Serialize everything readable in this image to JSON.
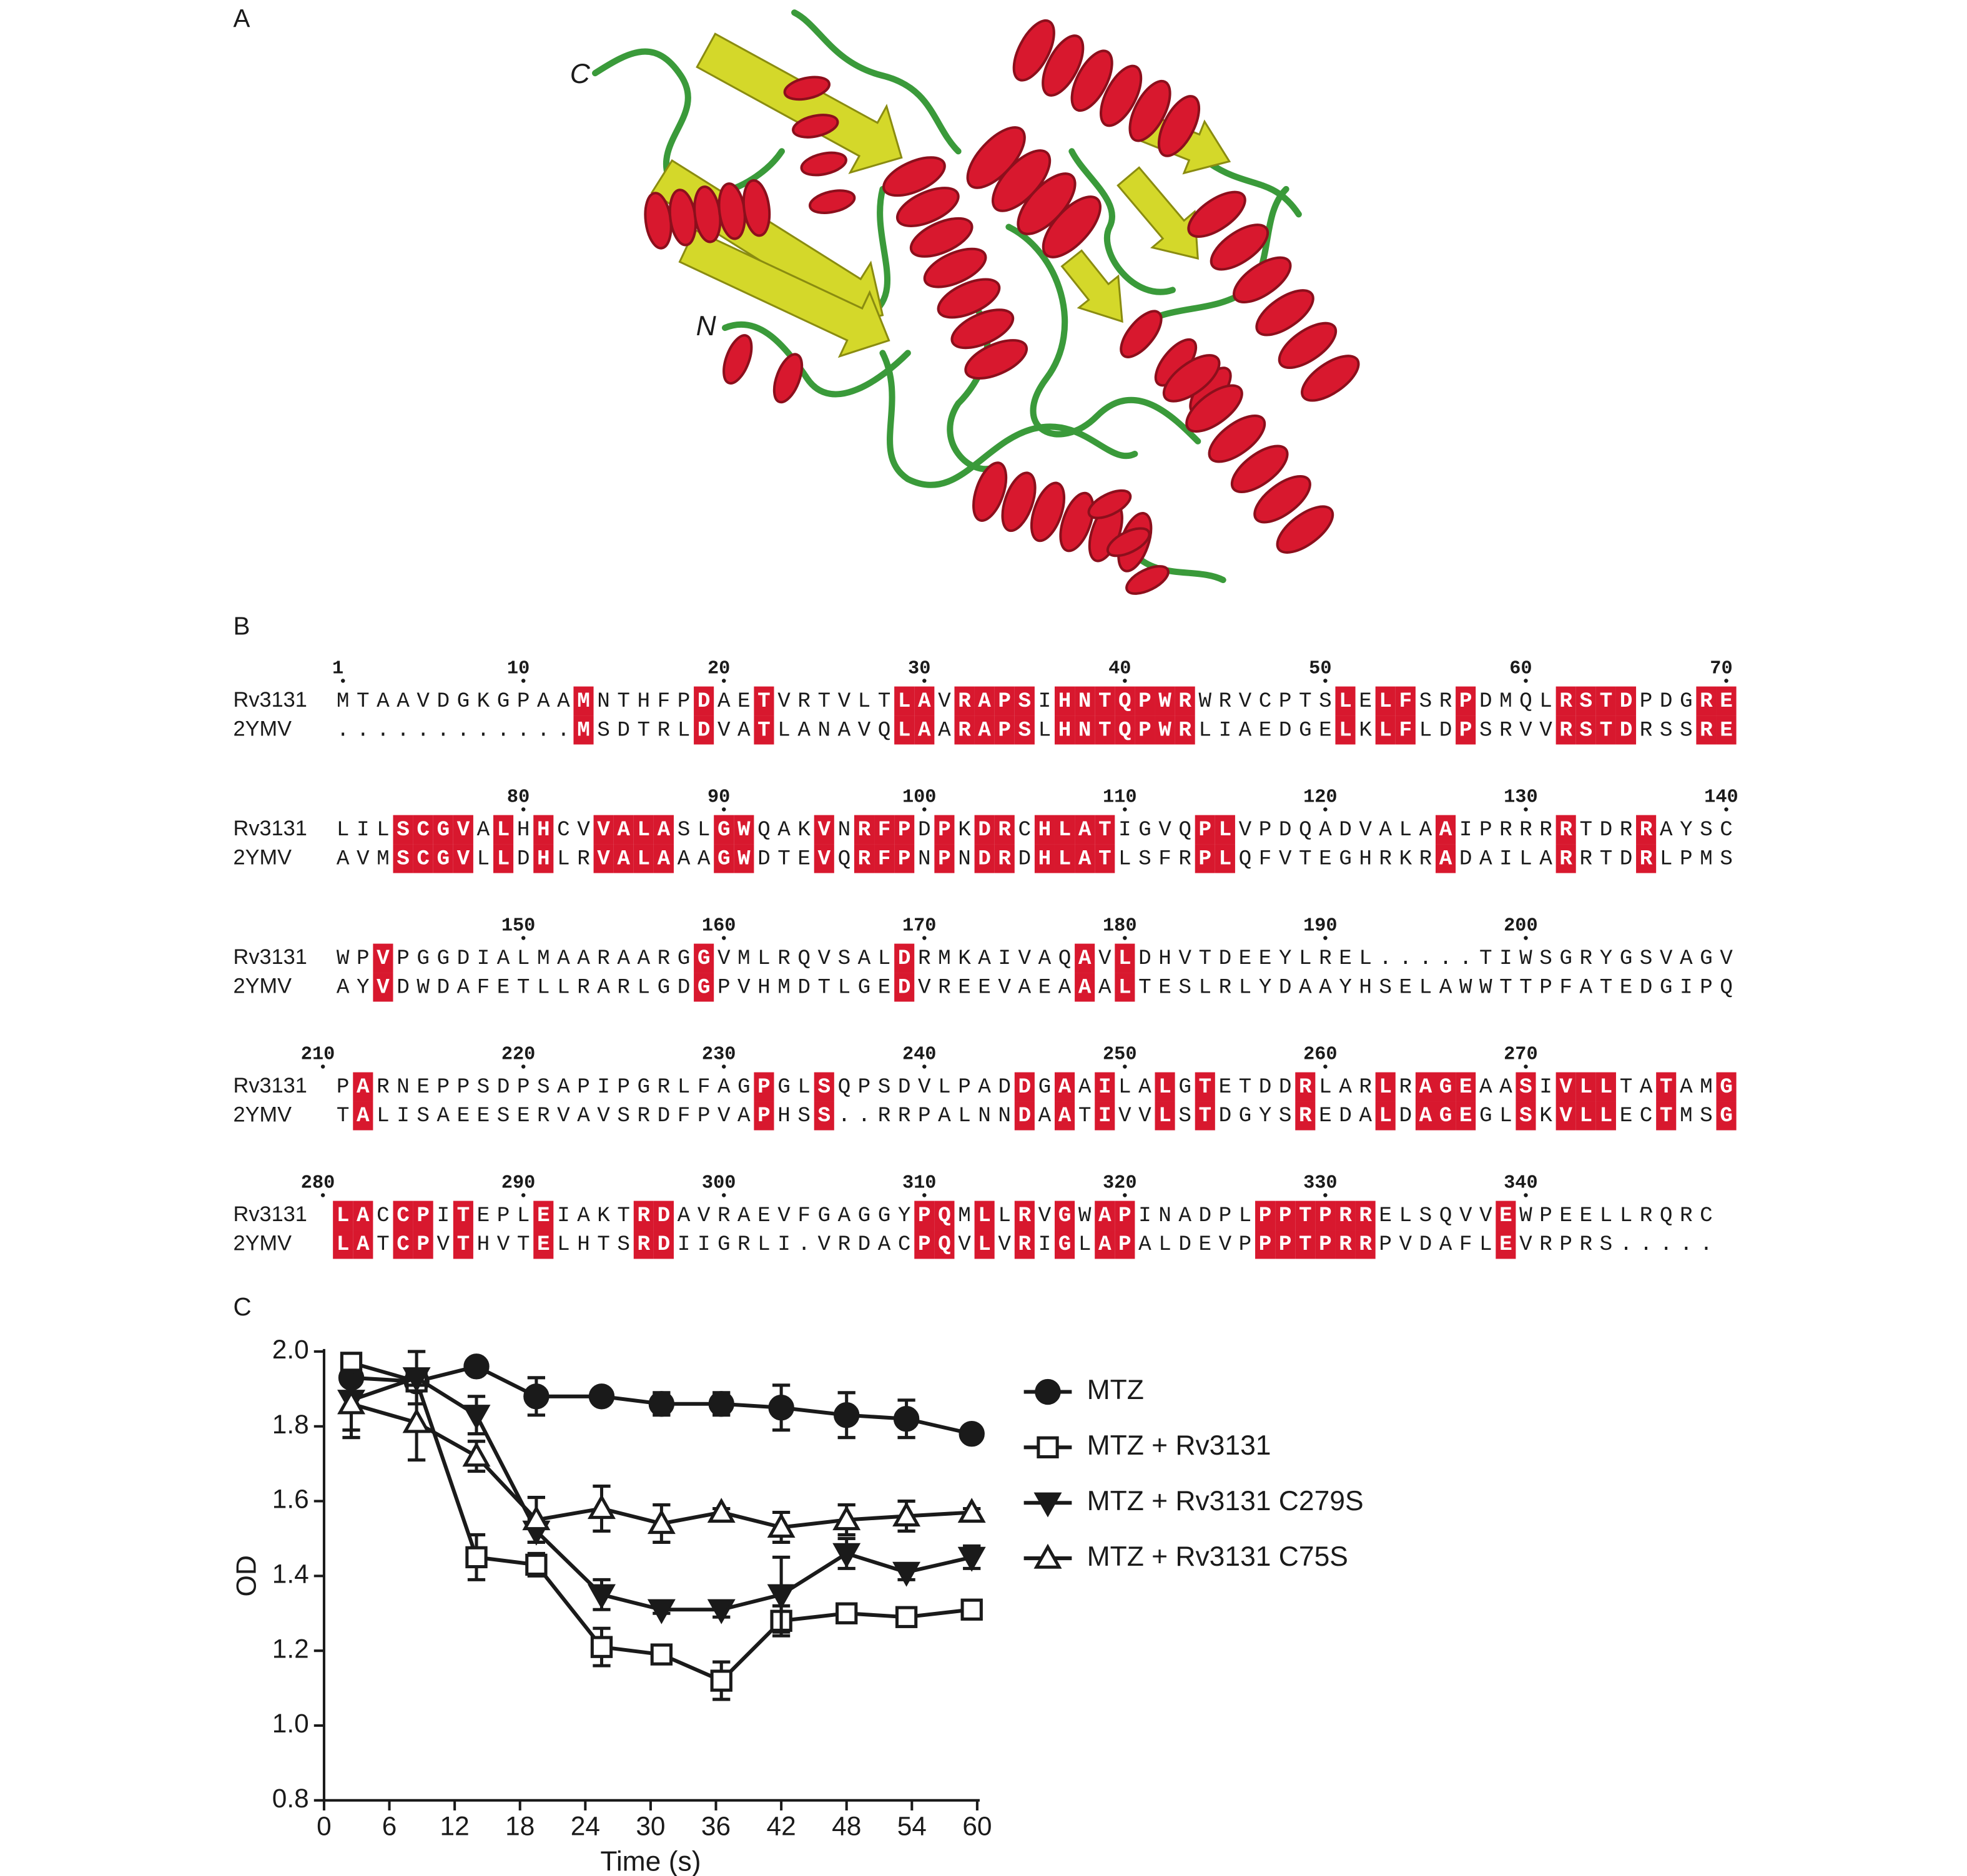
{
  "panel_labels": [
    "A",
    "B",
    "C"
  ],
  "structure": {
    "termini": [
      "C",
      "N"
    ]
  },
  "alignment": {
    "blocks": [
      {
        "ticks": [
          1,
          10,
          20,
          30,
          40,
          50,
          60,
          70
        ],
        "rows": [
          {
            "name": "Rv3131",
            "sequence": "MTAAVDGKGPAAMNTHFPDAETVRTVLTLAVRAPSIHNTQPWRWRVCPTSLELFSRPDMQLRSTDPDGRE"
          },
          {
            "name": "2YMV",
            "sequence": "............MSDTRLDVATLANAVQLAARAPSLHNTQPWRLIAEDGELKLFLDPSRVVRSTDRSSRE"
          }
        ]
      },
      {
        "ticks": [
          80,
          90,
          100,
          110,
          120,
          130,
          140
        ],
        "rows": [
          {
            "name": "Rv3131",
            "sequence": "LILSCGVALHHCVVALASLGWQAKVNRFPDPKDRCHLATIGVQPLVPDQADVALAAIPRRRRTDRRAYSC"
          },
          {
            "name": "2YMV",
            "sequence": "AVMSCGVLLDHLRVALAAAGWDTEVQRFPNPNDRDHLATLSFRPLQFVTEGHRKRADAILARRTDRLPMS"
          }
        ]
      },
      {
        "ticks": [
          150,
          160,
          170,
          180,
          190,
          200
        ],
        "rows": [
          {
            "name": "Rv3131",
            "sequence": "WPVPGGDIALMAARAARGGVMLRQVSALDRMKAIVAQAVLDHVTDEEYLREL.....TIWSGRYGSVAGV"
          },
          {
            "name": "2YMV",
            "sequence": "AYVDWDAFETLLRARLGDGPVHMDTLGEDVREEVAEAAALTESLRLYDAAYHSELAWWTTPFATEDGIPQ"
          }
        ]
      },
      {
        "ticks": [
          210,
          220,
          230,
          240,
          250,
          260,
          270
        ],
        "rows": [
          {
            "name": "Rv3131",
            "sequence": "PARNEPPSDPSAPIPGRLFAGPGLSQPSDVLPADDGAAILALGTETDDRLARLRAGEAASIVLLTATAMG"
          },
          {
            "name": "2YMV",
            "sequence": "TALISAEESERVAVSRDFPVAPHSS..RRPALNNDAATIVVLSTDGYSREDALDAGEGLSKVLLECTMSG"
          }
        ]
      },
      {
        "ticks": [
          280,
          290,
          300,
          310,
          320,
          330,
          340
        ],
        "rows": [
          {
            "name": "Rv3131",
            "sequence": "LACCPITEPLEIAKTRDAVRAEVFGAGGYPQMLLRVGWAPINADPLPPTPRRELSQVVEWPEELLRQRC"
          },
          {
            "name": "2YMV",
            "sequence": "LATCPVTHVTELHTSRDIIGRLI.VRDACPQVLVRIGLAPALDEVPPPTPRRPVDAFLEVRPRS....."
          }
        ]
      }
    ]
  },
  "chart_data": {
    "type": "line",
    "xlabel": "Time (s)",
    "ylabel": "OD",
    "x": [
      2.5,
      8.5,
      14,
      19.5,
      25.5,
      31,
      36.5,
      42,
      48,
      53.5,
      59.5
    ],
    "xlim": [
      0,
      60
    ],
    "xticks": [
      0,
      6,
      12,
      18,
      24,
      30,
      36,
      42,
      48,
      54,
      60
    ],
    "ylim": [
      0.8,
      2.0
    ],
    "yticks": [
      0.8,
      {
        "value": 1,
        "label": "1.0"
      },
      1.2,
      1.4,
      1.6,
      1.8,
      {
        "value": 2,
        "label": "2.0"
      }
    ],
    "grid": false,
    "legend": "right",
    "series": [
      {
        "name": "MTZ",
        "color": "#1a1a1a",
        "marker": "circle",
        "filled": true,
        "values": [
          1.93,
          1.92,
          1.96,
          1.88,
          1.88,
          1.86,
          1.86,
          1.85,
          1.83,
          1.82,
          1.78
        ],
        "errors": [
          0.02,
          0.02,
          0.01,
          0.05,
          0.02,
          0.03,
          0.03,
          0.06,
          0.06,
          0.05,
          0.01
        ]
      },
      {
        "name": "MTZ + Rv3131",
        "color": "#1a1a1a",
        "marker": "square",
        "filled": false,
        "values": [
          1.97,
          1.92,
          1.45,
          1.43,
          1.21,
          1.19,
          1.12,
          1.28,
          1.3,
          1.29,
          1.31
        ],
        "errors": [
          0.01,
          0.02,
          0.06,
          0.03,
          0.05,
          0.01,
          0.05,
          0.04,
          0.01,
          0.01,
          0.01
        ]
      },
      {
        "name": "MTZ + Rv3131 C279S",
        "color": "#1a1a1a",
        "marker": "triangle-down",
        "filled": true,
        "values": [
          1.87,
          1.93,
          1.83,
          1.52,
          1.35,
          1.31,
          1.31,
          1.35,
          1.46,
          1.41,
          1.45
        ],
        "errors": [
          0.08,
          0.07,
          0.05,
          0.03,
          0.04,
          0.01,
          0.02,
          0.1,
          0.04,
          0.02,
          0.03
        ]
      },
      {
        "name": "MTZ + Rv3131 C75S",
        "color": "#1a1a1a",
        "marker": "triangle-up",
        "filled": false,
        "values": [
          1.86,
          1.81,
          1.72,
          1.55,
          1.58,
          1.54,
          1.57,
          1.53,
          1.55,
          1.56,
          1.57
        ],
        "errors": [
          0.09,
          0.1,
          0.04,
          0.06,
          0.06,
          0.05,
          0.01,
          0.04,
          0.04,
          0.04,
          0.01
        ]
      }
    ]
  }
}
